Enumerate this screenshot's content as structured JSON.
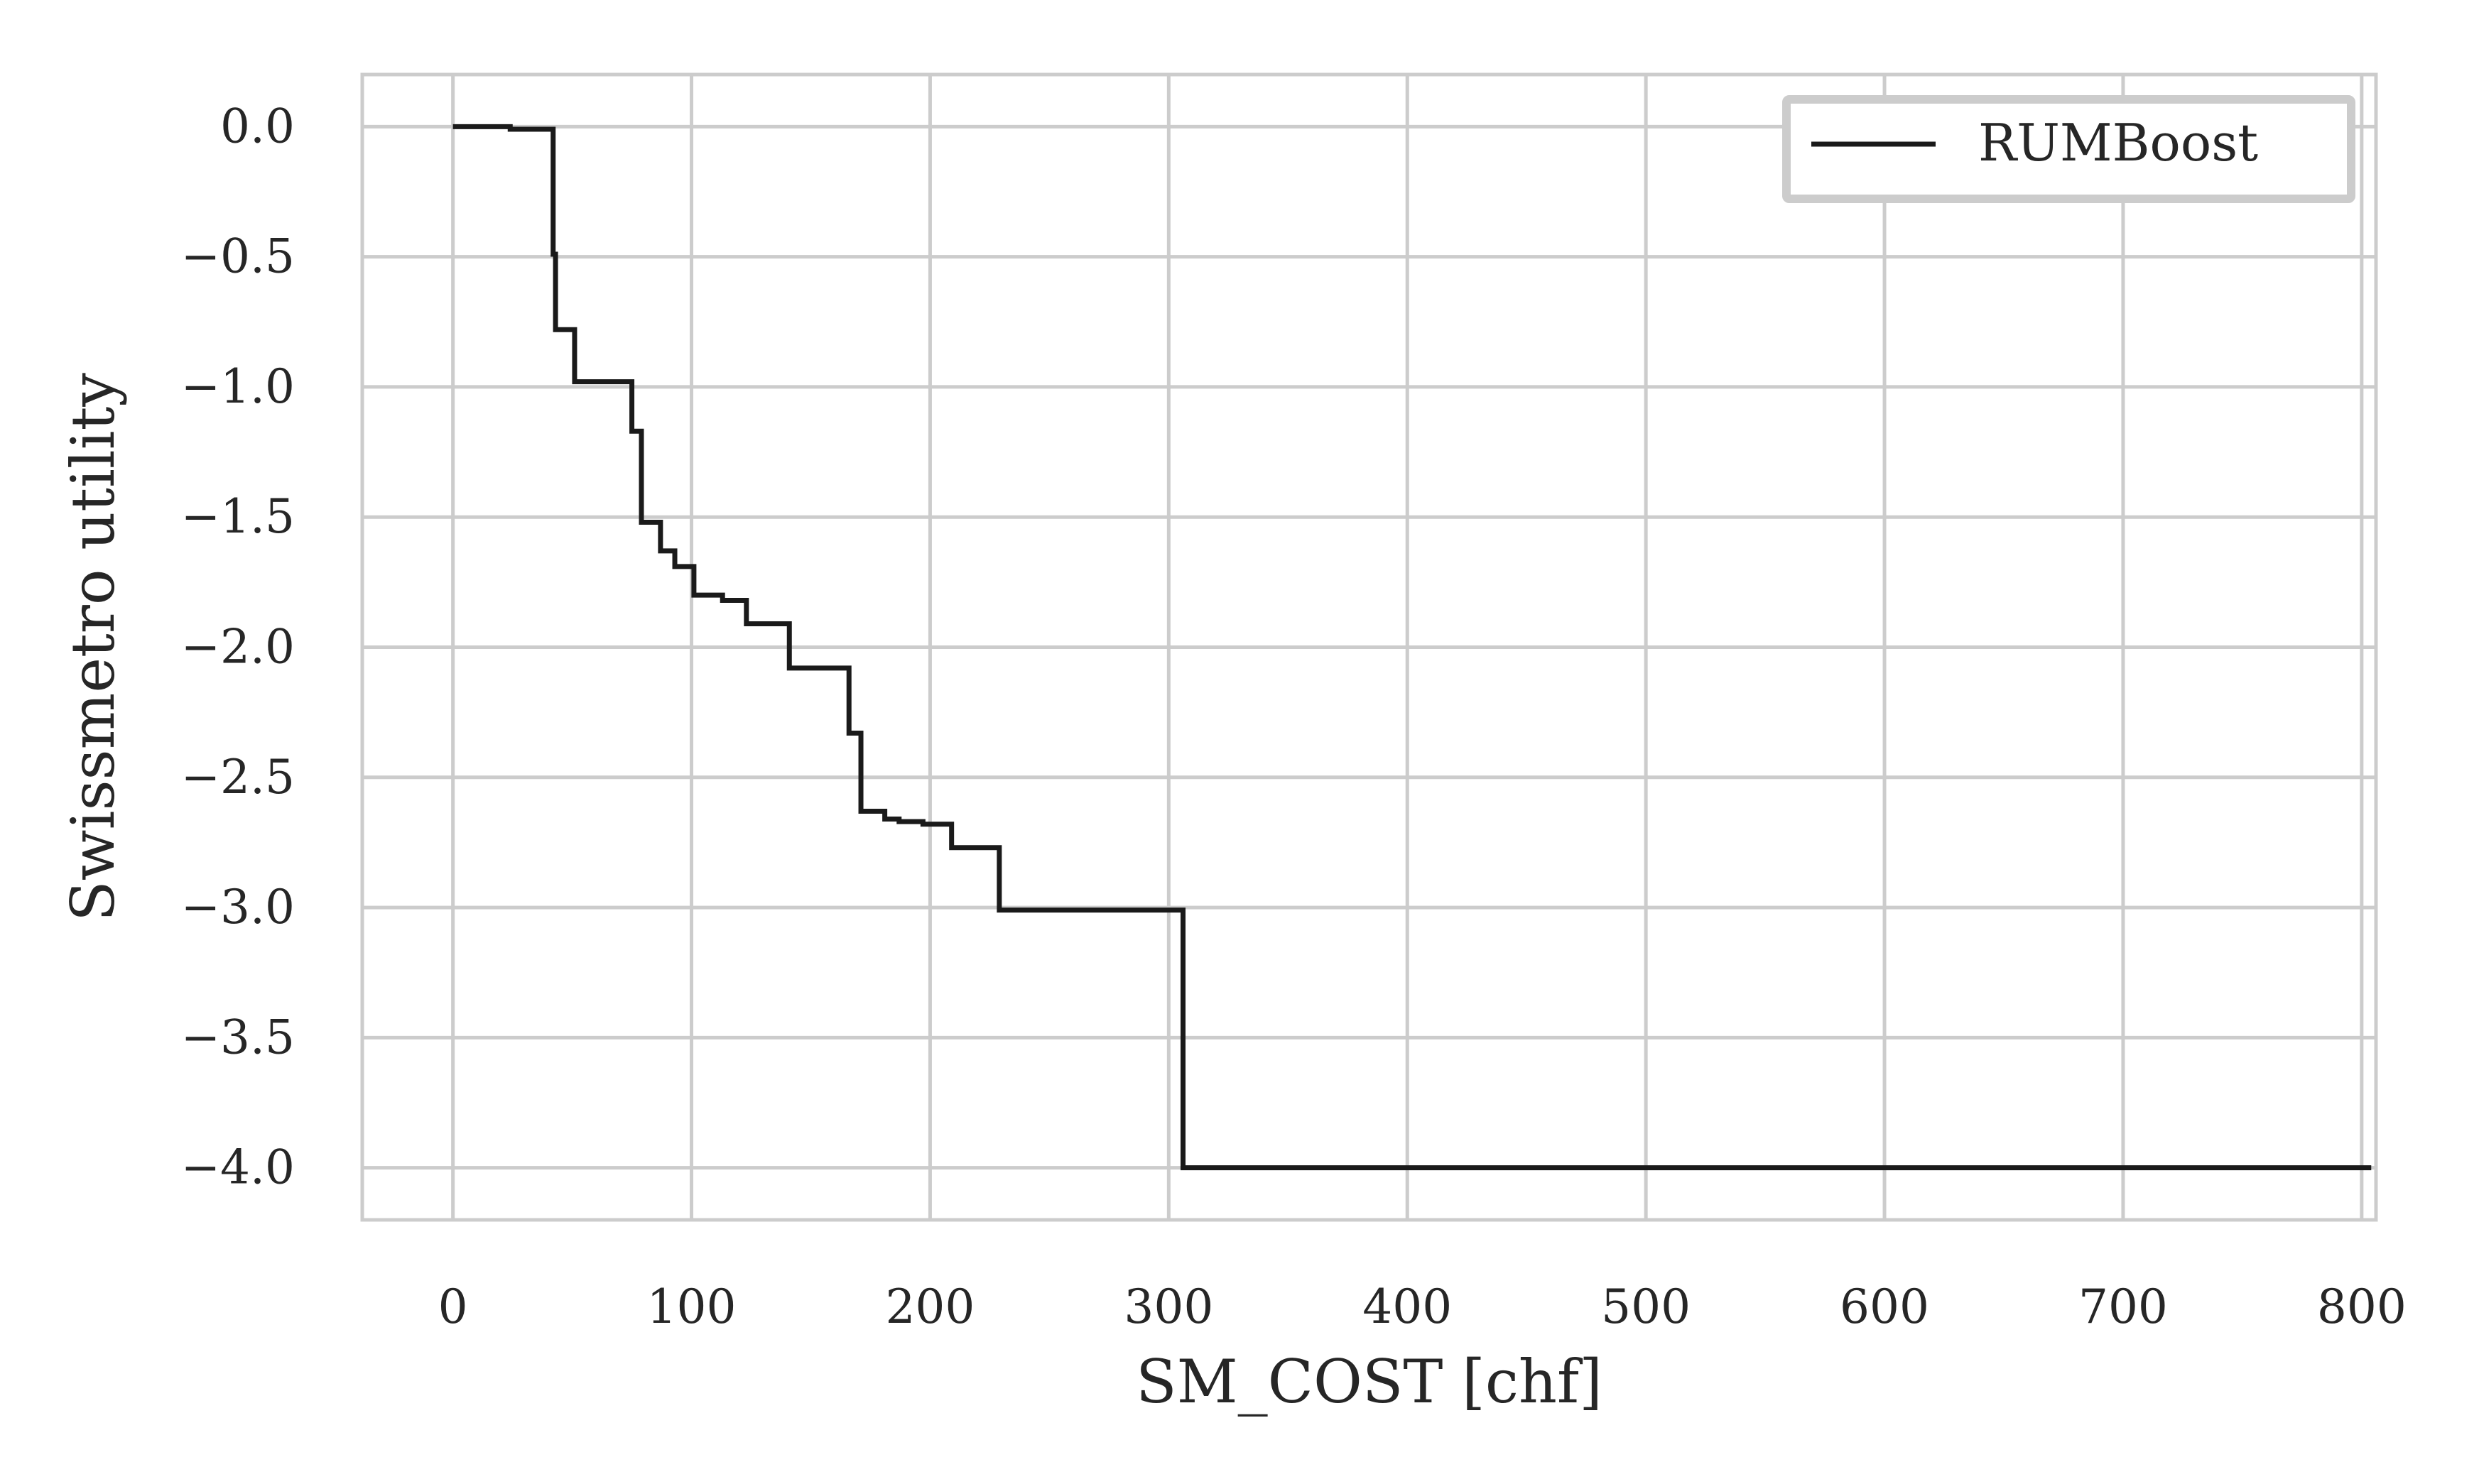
{
  "chart_data": {
    "type": "line",
    "xlabel": "SM_COST [chf]",
    "ylabel": "Swissmetro utility",
    "xlim": [
      -38,
      806
    ],
    "ylim": [
      -4.2,
      0.2
    ],
    "xticks": [
      0,
      100,
      200,
      300,
      400,
      500,
      600,
      700,
      800
    ],
    "xtick_labels": [
      "0",
      "100",
      "200",
      "300",
      "400",
      "500",
      "600",
      "700",
      "800"
    ],
    "yticks": [
      0.0,
      -0.5,
      -1.0,
      -1.5,
      -2.0,
      -2.5,
      -3.0,
      -3.5,
      -4.0
    ],
    "ytick_labels": [
      "0.0",
      "−0.5",
      "−1.0",
      "−1.5",
      "−2.0",
      "−2.5",
      "−3.0",
      "−3.5",
      "−4.0"
    ],
    "grid": true,
    "legend_position": "top-right",
    "series": [
      {
        "name": "RUMBoost",
        "color": "#1a1a1a",
        "step": "post",
        "x": [
          0,
          24,
          41,
          42,
          43,
          51,
          75,
          78,
          79,
          87,
          93,
          101,
          113,
          123,
          141,
          166,
          169,
          171,
          181,
          187,
          197,
          209,
          229,
          305,
          306,
          804
        ],
        "y": [
          0.0,
          -0.01,
          -0.01,
          -0.49,
          -0.78,
          -0.98,
          -1.17,
          -1.17,
          -1.52,
          -1.63,
          -1.69,
          -1.8,
          -1.82,
          -1.91,
          -2.08,
          -2.33,
          -2.33,
          -2.63,
          -2.66,
          -2.67,
          -2.68,
          -2.77,
          -3.01,
          -3.01,
          -4.0,
          -4.0
        ]
      }
    ]
  }
}
